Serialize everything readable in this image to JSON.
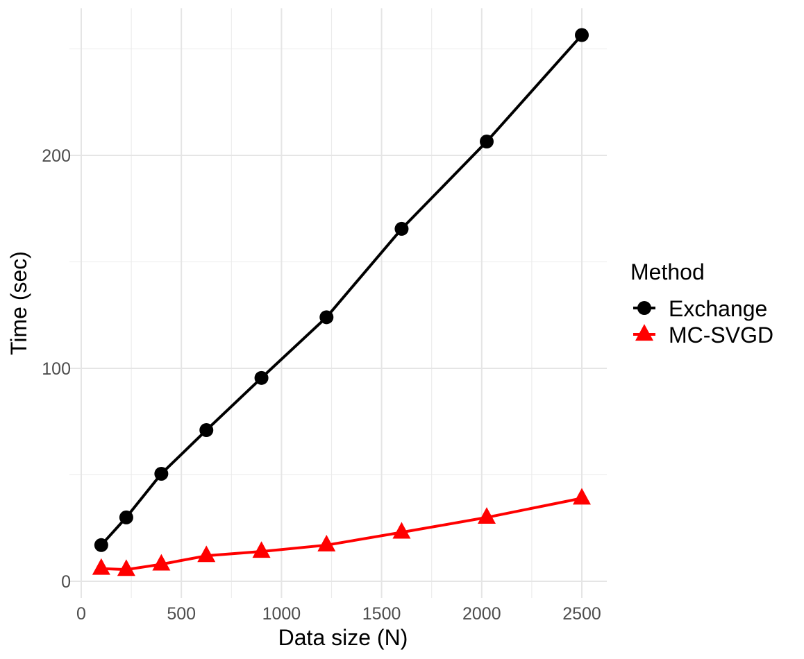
{
  "chart_data": {
    "type": "line",
    "title": "",
    "xlabel": "Data size (N)",
    "ylabel": "Time (sec)",
    "xlim": [
      0,
      2600
    ],
    "ylim": [
      0,
      260
    ],
    "x_ticks": [
      0,
      500,
      1000,
      1500,
      2000,
      2500
    ],
    "x_minor_ticks": [
      250,
      750,
      1250,
      1750,
      2250
    ],
    "y_ticks": [
      0,
      100,
      200
    ],
    "y_minor_ticks": [
      50,
      150,
      250
    ],
    "grid": true,
    "legend": {
      "title": "Method",
      "placement": "right"
    },
    "x": [
      100,
      225,
      400,
      625,
      900,
      1225,
      1600,
      2025,
      2500
    ],
    "series": [
      {
        "name": "Exchange",
        "color": "#000000",
        "marker": "circle",
        "values": [
          17,
          30,
          50.5,
          71,
          95.5,
          124,
          165.5,
          206.5,
          256.5
        ]
      },
      {
        "name": "MC-SVGD",
        "color": "#ff0000",
        "marker": "triangle",
        "values": [
          6,
          5.5,
          8,
          12,
          14,
          17,
          23,
          30,
          39
        ]
      }
    ]
  }
}
